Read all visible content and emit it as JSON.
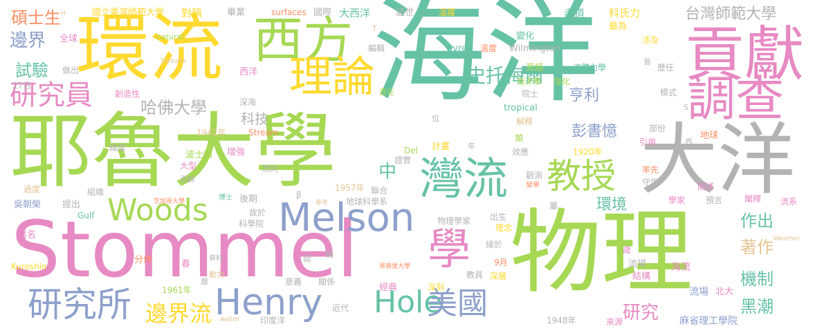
{
  "palette": {
    "green": "#66C2A5",
    "orange": "#FC8D62",
    "blue": "#8DA0CB",
    "pink": "#E78AC3",
    "lime": "#A6D854",
    "yellow": "#FFD92F",
    "tan": "#E5C494",
    "gray": "#B3B3B3"
  },
  "words": [
    {
      "t": "海洋",
      "c": "green"
    },
    {
      "t": "物理",
      "c": "lime"
    },
    {
      "t": "Stommel",
      "c": "pink"
    },
    {
      "t": "耶魯大學",
      "c": "lime"
    },
    {
      "t": "環流",
      "c": "yellow"
    },
    {
      "t": "大洋",
      "c": "gray"
    },
    {
      "t": "西方",
      "c": "lime"
    },
    {
      "t": "貢獻",
      "c": "pink"
    },
    {
      "t": "調查",
      "c": "pink"
    },
    {
      "t": "理論",
      "c": "yellow"
    },
    {
      "t": "灣流",
      "c": "green"
    },
    {
      "t": "教授",
      "c": "lime"
    },
    {
      "t": "Melson",
      "c": "blue"
    },
    {
      "t": "Woods",
      "c": "lime"
    },
    {
      "t": "Henry",
      "c": "blue"
    },
    {
      "t": "Hole",
      "c": "green"
    },
    {
      "t": "美國",
      "c": "blue"
    },
    {
      "t": "研究所",
      "c": "blue"
    },
    {
      "t": "學",
      "c": "pink"
    },
    {
      "t": "研究員",
      "c": "pink"
    },
    {
      "t": "邊界流",
      "c": "yellow"
    },
    {
      "t": "史托梅爾",
      "c": "green"
    },
    {
      "t": "台灣師範大學",
      "c": "gray"
    },
    {
      "t": "哈佛大學",
      "c": "gray"
    },
    {
      "t": "碩士生",
      "c": "orange"
    },
    {
      "t": "邊界",
      "c": "blue"
    },
    {
      "t": "試驗",
      "c": "green"
    },
    {
      "t": "彭書憶",
      "c": "blue"
    },
    {
      "t": "亨利",
      "c": "blue"
    },
    {
      "t": "環境",
      "c": "green"
    },
    {
      "t": "作出",
      "c": "green"
    },
    {
      "t": "著作",
      "c": "tan"
    },
    {
      "t": "機制",
      "c": "green"
    },
    {
      "t": "黑潮",
      "c": "green"
    },
    {
      "t": "研究",
      "c": "pink"
    },
    {
      "t": "中",
      "c": "green"
    },
    {
      "t": "科技",
      "c": "gray"
    },
    {
      "t": "國立臺灣師範大學",
      "c": "yellow"
    },
    {
      "t": "對稱",
      "c": "yellow"
    },
    {
      "t": "畢業",
      "c": "gray"
    },
    {
      "t": "surfaces",
      "c": "orange"
    },
    {
      "t": "國際",
      "c": "gray"
    },
    {
      "t": "大西洋",
      "c": "green"
    },
    {
      "t": "過世",
      "c": "gray"
    },
    {
      "t": "溫躍",
      "c": "yellow"
    },
    {
      "t": "赤道",
      "c": "green"
    },
    {
      "t": "科氏力",
      "c": "yellow"
    },
    {
      "t": "最為",
      "c": "yellow"
    },
    {
      "t": "涉及",
      "c": "yellow"
    },
    {
      "t": "全球",
      "c": "pink"
    },
    {
      "t": "natural",
      "c": "lime"
    },
    {
      "t": "Streaks",
      "c": "tan"
    },
    {
      "t": "做出",
      "c": "gray"
    },
    {
      "t": "西洋",
      "c": "pink"
    },
    {
      "t": "27日",
      "c": "gray"
    },
    {
      "t": "創造性",
      "c": "pink"
    },
    {
      "t": "深海",
      "c": "gray"
    },
    {
      "t": "1942年",
      "c": "tan"
    },
    {
      "t": "Stream",
      "c": "orange"
    },
    {
      "t": "緯度",
      "c": "gray"
    },
    {
      "t": "波士頓",
      "c": "lime"
    },
    {
      "t": "大型",
      "c": "pink"
    },
    {
      "t": "增強",
      "c": "pink"
    },
    {
      "t": "流向",
      "c": "gray"
    },
    {
      "t": "百餘",
      "c": "gray"
    },
    {
      "t": "組織",
      "c": "gray"
    },
    {
      "t": "芝加哥大學",
      "c": "orange"
    },
    {
      "t": "過度",
      "c": "tan"
    },
    {
      "t": "吳朝榮",
      "c": "blue"
    },
    {
      "t": "提出",
      "c": "gray"
    },
    {
      "t": "博士",
      "c": "green"
    },
    {
      "t": "後期",
      "c": "gray"
    },
    {
      "t": "故於",
      "c": "gray"
    },
    {
      "t": "β",
      "c": "gray"
    },
    {
      "t": "科學院",
      "c": "gray"
    },
    {
      "t": "Gulf",
      "c": "green"
    },
    {
      "t": "著名",
      "c": "pink"
    },
    {
      "t": "Kuroshio",
      "c": "yellow"
    },
    {
      "t": "分佈",
      "c": "orange"
    },
    {
      "t": "春",
      "c": "pink"
    },
    {
      "t": "資料",
      "c": "gray"
    },
    {
      "t": "動力",
      "c": "tan"
    },
    {
      "t": "層",
      "c": "gray"
    },
    {
      "t": "1961年",
      "c": "lime"
    },
    {
      "t": "water",
      "c": "tan"
    },
    {
      "t": "印度洋",
      "c": "gray"
    },
    {
      "t": "近代",
      "c": "gray"
    },
    {
      "t": "意義",
      "c": "gray"
    },
    {
      "t": "關係",
      "c": "gray"
    },
    {
      "t": "延",
      "c": "gray"
    },
    {
      "t": "稱",
      "c": "gray"
    },
    {
      "t": "參考",
      "c": "tan"
    },
    {
      "t": "經典",
      "c": "pink"
    },
    {
      "t": "教員",
      "c": "gray"
    },
    {
      "t": "深刻",
      "c": "yellow"
    },
    {
      "t": "哥德堡大學",
      "c": "orange"
    },
    {
      "t": "地球科學系",
      "c": "gray"
    },
    {
      "t": "物理學家",
      "c": "gray"
    },
    {
      "t": "理念",
      "c": "yellow"
    },
    {
      "t": "出生",
      "c": "gray"
    },
    {
      "t": "9月",
      "c": "orange"
    },
    {
      "t": "深層",
      "c": "yellow"
    },
    {
      "t": "1957年",
      "c": "tan"
    },
    {
      "t": "聯合",
      "c": "gray"
    },
    {
      "t": "證實",
      "c": "gray"
    },
    {
      "t": "計畫",
      "c": "yellow"
    },
    {
      "t": "年",
      "c": "gray"
    },
    {
      "t": "Del",
      "c": "lime"
    },
    {
      "t": "位",
      "c": "gray"
    },
    {
      "t": "責任",
      "c": "lime"
    },
    {
      "t": "編輯",
      "c": "gray"
    },
    {
      "t": "gyre",
      "c": "green"
    },
    {
      "t": "溫度",
      "c": "orange"
    },
    {
      "t": "Wilmington",
      "c": "gray"
    },
    {
      "t": "T",
      "c": "tan"
    },
    {
      "t": "變化",
      "c": "green"
    },
    {
      "t": "高級",
      "c": "lime"
    },
    {
      "t": "流體力學",
      "c": "green"
    },
    {
      "t": "皆",
      "c": "gray"
    },
    {
      "t": "歷任",
      "c": "gray"
    },
    {
      "t": "海洋學",
      "c": "lime"
    },
    {
      "t": "強化",
      "c": "lime"
    },
    {
      "t": "院士",
      "c": "gray"
    },
    {
      "t": "tropical",
      "c": "green"
    },
    {
      "t": "模式",
      "c": "gray"
    },
    {
      "t": "S",
      "c": "gray"
    },
    {
      "t": "解釋",
      "c": "tan"
    },
    {
      "t": "部份",
      "c": "gray"
    },
    {
      "t": "類",
      "c": "lime"
    },
    {
      "t": "效應",
      "c": "gray"
    },
    {
      "t": "1920年",
      "c": "yellow"
    },
    {
      "t": "引用",
      "c": "pink"
    },
    {
      "t": "西",
      "c": "gray"
    },
    {
      "t": "地球",
      "c": "orange"
    },
    {
      "t": "率先",
      "c": "orange"
    },
    {
      "t": "守恆",
      "c": "gray"
    },
    {
      "t": "觀測",
      "c": "gray"
    },
    {
      "t": "榮譽",
      "c": "orange"
    },
    {
      "t": "關述",
      "c": "pink"
    },
    {
      "t": "預言",
      "c": "gray"
    },
    {
      "t": "屬",
      "c": "gray"
    },
    {
      "t": "學家",
      "c": "pink"
    },
    {
      "t": "闡釋",
      "c": "pink"
    },
    {
      "t": "流系",
      "c": "pink"
    },
    {
      "t": "緣於",
      "c": "gray"
    },
    {
      "t": "歲",
      "c": "pink"
    },
    {
      "t": "Weather",
      "c": "tan"
    },
    {
      "t": "流場",
      "c": "gray"
    },
    {
      "t": "海流",
      "c": "pink"
    },
    {
      "t": "結構",
      "c": "pink"
    },
    {
      "t": "流場",
      "c": "blue"
    },
    {
      "t": "北大",
      "c": "pink"
    },
    {
      "t": "1948年",
      "c": "gray"
    },
    {
      "t": "來源",
      "c": "pink"
    },
    {
      "t": "麻省理工學院",
      "c": "blue"
    },
    {
      "t": "H",
      "c": "tan"
    }
  ]
}
